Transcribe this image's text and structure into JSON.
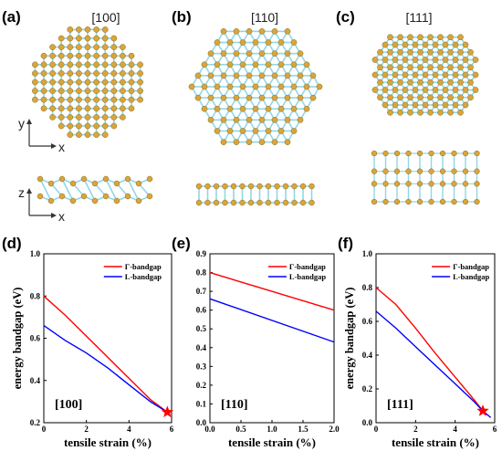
{
  "structure_panels": [
    {
      "letter": "(a)",
      "direction": "[100]",
      "axes_top": [
        "y",
        "x"
      ],
      "axes_bottom": [
        "z",
        "x"
      ]
    },
    {
      "letter": "(b)",
      "direction": "[110]"
    },
    {
      "letter": "(c)",
      "direction": "[111]"
    }
  ],
  "colors": {
    "gamma": "#ff0000",
    "l": "#0000ff",
    "atom": "#d9a53a",
    "bond": "#8fd8e8",
    "star": "#ff0000"
  },
  "chart_data": [
    {
      "type": "line",
      "panel": "(d)",
      "direction_label": "[100]",
      "xlabel": "tensile strain (%)",
      "ylabel": "energy bandgap (eV)",
      "xlim": [
        0,
        6
      ],
      "ylim": [
        0.2,
        1.0
      ],
      "xticks": [
        "0",
        "2",
        "4",
        "6"
      ],
      "yticks": [
        "0.2",
        "0.4",
        "0.6",
        "0.8",
        "1.0"
      ],
      "legend_position": "top-right",
      "marker": {
        "x": 5.8,
        "y": 0.25,
        "shape": "star"
      },
      "series": [
        {
          "name": "Γ-bandgap",
          "x": [
            0,
            1,
            2,
            3,
            4,
            5,
            5.8
          ],
          "y": [
            0.8,
            0.71,
            0.61,
            0.51,
            0.41,
            0.31,
            0.25
          ]
        },
        {
          "name": "L-bandgap",
          "x": [
            0,
            1,
            2,
            3,
            4,
            5,
            5.8
          ],
          "y": [
            0.66,
            0.59,
            0.53,
            0.46,
            0.38,
            0.3,
            0.25
          ]
        }
      ]
    },
    {
      "type": "line",
      "panel": "(e)",
      "direction_label": "[110]",
      "xlabel": "tensile strain (%)",
      "ylabel": "",
      "xlim": [
        0,
        2
      ],
      "ylim": [
        0,
        0.9
      ],
      "xticks": [
        "0.0",
        "0.5",
        "1.0",
        "1.5",
        "2.0"
      ],
      "yticks": [
        "0.0",
        "0.1",
        "0.2",
        "0.3",
        "0.4",
        "0.5",
        "0.6",
        "0.7",
        "0.8",
        "0.9"
      ],
      "legend_position": "top-right",
      "series": [
        {
          "name": "Γ-bandgap",
          "x": [
            0,
            2
          ],
          "y": [
            0.8,
            0.6
          ]
        },
        {
          "name": "L-bandgap",
          "x": [
            0,
            2
          ],
          "y": [
            0.66,
            0.43
          ]
        }
      ]
    },
    {
      "type": "line",
      "panel": "(f)",
      "direction_label": "[111]",
      "xlabel": "tensile strain (%)",
      "ylabel": "energy bandgap (eV)",
      "xlim": [
        0,
        6
      ],
      "ylim": [
        0,
        1.0
      ],
      "xticks": [
        "0",
        "2",
        "4",
        "6"
      ],
      "yticks": [
        "0.0",
        "0.2",
        "0.4",
        "0.6",
        "0.8",
        "1.0"
      ],
      "legend_position": "top-right",
      "marker": {
        "x": 5.4,
        "y": 0.07,
        "shape": "star"
      },
      "series": [
        {
          "name": "Γ-bandgap",
          "x": [
            0,
            1,
            2,
            3,
            4,
            5,
            5.4
          ],
          "y": [
            0.8,
            0.7,
            0.56,
            0.41,
            0.27,
            0.13,
            0.07
          ]
        },
        {
          "name": "L-bandgap",
          "x": [
            0,
            1,
            2,
            3,
            4,
            5,
            5.4,
            5.8
          ],
          "y": [
            0.66,
            0.56,
            0.45,
            0.34,
            0.23,
            0.12,
            0.07,
            0.03
          ]
        }
      ]
    }
  ]
}
